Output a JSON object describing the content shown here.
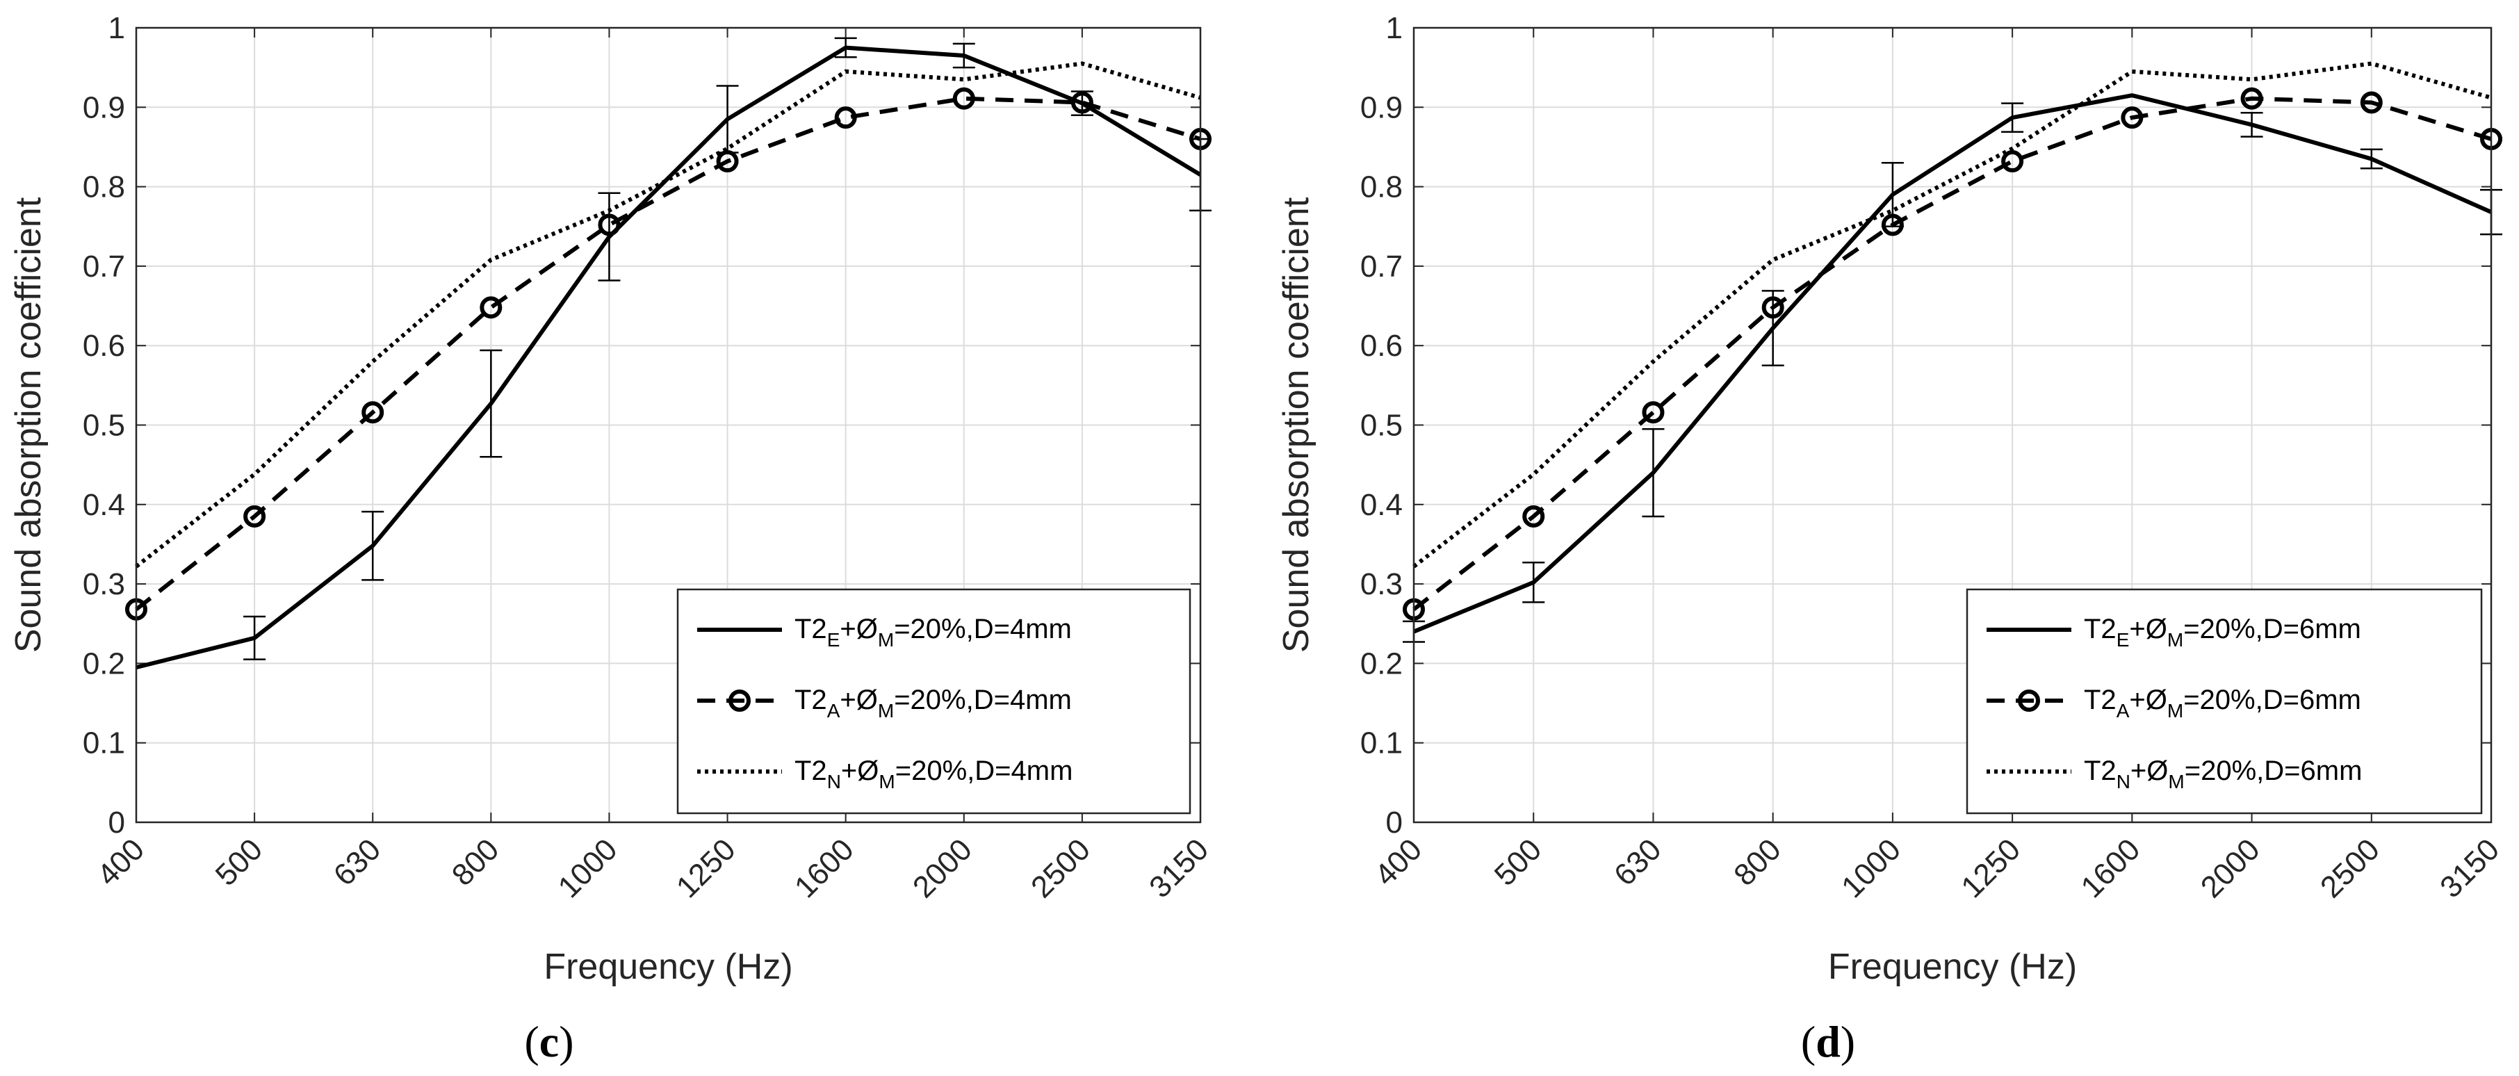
{
  "chart_data": [
    {
      "type": "line",
      "panel_label": "(c)",
      "panel_letter": "c",
      "xlabel": "Frequency (Hz)",
      "ylabel": "Sound absorption coefficient",
      "categories": [
        "400",
        "500",
        "630",
        "800",
        "1000",
        "1250",
        "1600",
        "2000",
        "2500",
        "3150"
      ],
      "ylim": [
        0,
        1
      ],
      "yticks": [
        "0",
        "0.1",
        "0.2",
        "0.3",
        "0.4",
        "0.5",
        "0.6",
        "0.7",
        "0.8",
        "0.9",
        "1"
      ],
      "grid": true,
      "legend_position": "bottom-right",
      "series": [
        {
          "name": "T2E+ØM=20%,D=4mm",
          "label_base": "T2",
          "label_sub": "E",
          "label_mid": "+Ø",
          "label_sub2": "M",
          "label_tail": "=20%,D=4mm",
          "style": "solid",
          "marker": "none",
          "values": [
            0.195,
            0.232,
            0.348,
            0.527,
            0.737,
            0.885,
            0.975,
            0.965,
            0.905,
            0.815
          ],
          "error": [
            0.0,
            0.027,
            0.043,
            0.067,
            0.055,
            0.042,
            0.012,
            0.015,
            0.015,
            0.045
          ]
        },
        {
          "name": "T2A+ØM=20%,D=4mm",
          "label_base": "T2",
          "label_sub": "A",
          "label_mid": "+Ø",
          "label_sub2": "M",
          "label_tail": "=20%,D=4mm",
          "style": "dashed",
          "marker": "circle",
          "values": [
            0.268,
            0.385,
            0.516,
            0.648,
            0.752,
            0.832,
            0.887,
            0.911,
            0.906,
            0.86
          ],
          "error": []
        },
        {
          "name": "T2N+ØM=20%,D=4mm",
          "label_base": "T2",
          "label_sub": "N",
          "label_mid": "+Ø",
          "label_sub2": "M",
          "label_tail": "=20%,D=4mm",
          "style": "dotted",
          "marker": "none",
          "values": [
            0.322,
            0.438,
            0.58,
            0.708,
            0.77,
            0.848,
            0.945,
            0.935,
            0.955,
            0.912
          ],
          "error": []
        }
      ]
    },
    {
      "type": "line",
      "panel_label": "(d)",
      "panel_letter": "d",
      "xlabel": "Frequency (Hz)",
      "ylabel": "Sound absorption coefficient",
      "categories": [
        "400",
        "500",
        "630",
        "800",
        "1000",
        "1250",
        "1600",
        "2000",
        "2500",
        "3150"
      ],
      "ylim": [
        0,
        1
      ],
      "yticks": [
        "0",
        "0.1",
        "0.2",
        "0.3",
        "0.4",
        "0.5",
        "0.6",
        "0.7",
        "0.8",
        "0.9",
        "1"
      ],
      "grid": true,
      "legend_position": "bottom-right",
      "series": [
        {
          "name": "T2E+ØM=20%,D=6mm",
          "label_base": "T2",
          "label_sub": "E",
          "label_mid": "+Ø",
          "label_sub2": "M",
          "label_tail": "=20%,D=6mm",
          "style": "solid",
          "marker": "none",
          "values": [
            0.24,
            0.302,
            0.44,
            0.622,
            0.79,
            0.887,
            0.915,
            0.878,
            0.835,
            0.768
          ],
          "error": [
            0.013,
            0.025,
            0.055,
            0.047,
            0.04,
            0.018,
            0.0,
            0.015,
            0.012,
            0.028
          ]
        },
        {
          "name": "T2A+ØM=20%,D=6mm",
          "label_base": "T2",
          "label_sub": "A",
          "label_mid": "+Ø",
          "label_sub2": "M",
          "label_tail": "=20%,D=6mm",
          "style": "dashed",
          "marker": "circle",
          "values": [
            0.268,
            0.385,
            0.516,
            0.648,
            0.752,
            0.832,
            0.887,
            0.911,
            0.906,
            0.86
          ],
          "error": []
        },
        {
          "name": "T2N+ØM=20%,D=6mm",
          "label_base": "T2",
          "label_sub": "N",
          "label_mid": "+Ø",
          "label_sub2": "M",
          "label_tail": "=20%,D=6mm",
          "style": "dotted",
          "marker": "none",
          "values": [
            0.322,
            0.438,
            0.58,
            0.708,
            0.77,
            0.848,
            0.945,
            0.935,
            0.955,
            0.912
          ],
          "error": []
        }
      ]
    }
  ]
}
